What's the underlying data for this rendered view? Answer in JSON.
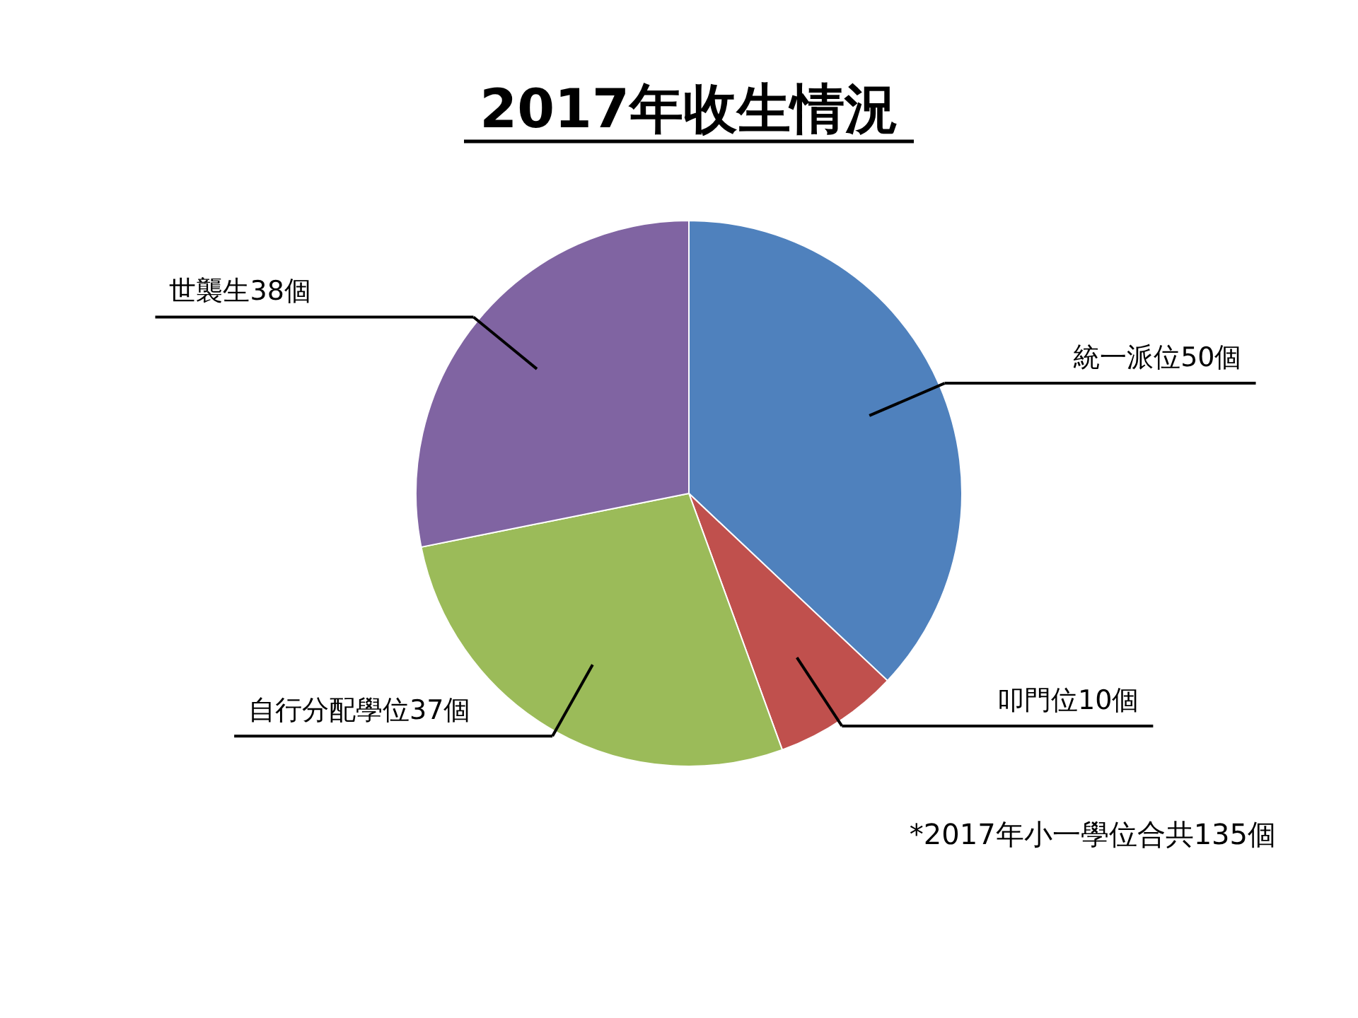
{
  "chart_data": {
    "type": "pie",
    "title": "2017年收生情況",
    "categories": [
      "統一派位",
      "叩門位",
      "自行分配學位",
      "世襲生"
    ],
    "values": [
      50,
      10,
      37,
      38
    ],
    "value_labels": [
      "50個",
      "10個",
      "37個",
      "38個"
    ],
    "colors": [
      "#4f81bd",
      "#c0504d",
      "#9bbb59",
      "#8064a2"
    ],
    "annotations": [
      "*2017年小一學位合共135個"
    ]
  }
}
